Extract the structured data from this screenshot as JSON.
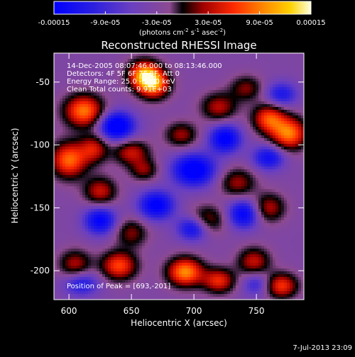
{
  "colorbar": {
    "tick_labels": [
      "-0.00015",
      "-9.0e-05",
      "-3.0e-05",
      "3.0e-05",
      "9.0e-05",
      "0.00015"
    ],
    "min": -0.00015,
    "max": 0.00015,
    "units_prefix": "(photons cm",
    "units_exp1": "-2",
    "units_mid": " s",
    "units_exp2": "-1",
    "units_mid2": " asec",
    "units_exp3": "-2",
    "units_suffix": ")"
  },
  "annotations": {
    "line1": "14-Dec-2005 08:07:46.000 to 08:13:46.000",
    "line2": "Detectors: 4F 5F 6F 7F 8F, Att 0",
    "line3": "Energy Range: 25.0 - 50.0 keV",
    "line4": "Clean     Total counts: 9.91E+03",
    "peak": "Position of Peak = [693,-201]"
  },
  "footer": {
    "date": "7-Jul-2013 23:09"
  },
  "chart_data": {
    "type": "heatmap",
    "title": "Reconstructed RHESSI Image",
    "xlabel": "Heliocentric X (arcsec)",
    "ylabel": "Heliocentric Y (arcsec)",
    "x_ticks": [
      600,
      650,
      700,
      750
    ],
    "y_ticks": [
      -50,
      -100,
      -150,
      -200
    ],
    "xlim": [
      588,
      788
    ],
    "ylim": [
      -223,
      -27
    ],
    "colormap": [
      "#0000ff",
      "#3b2bd6",
      "#7a46b0",
      "#9a4d8a",
      "#000000",
      "#a00000",
      "#ff2a00",
      "#ff8c00",
      "#ffd200",
      "#ffffe0"
    ],
    "peak_position": [
      693,
      -201
    ],
    "bright_regions": [
      {
        "x": 612,
        "y": -73,
        "level": 0.95,
        "sx": 11,
        "sy": 9
      },
      {
        "x": 600,
        "y": -112,
        "level": 0.9,
        "sx": 10,
        "sy": 10
      },
      {
        "x": 620,
        "y": -103,
        "level": 0.6,
        "sx": 8,
        "sy": 8
      },
      {
        "x": 625,
        "y": -137,
        "level": 0.6,
        "sx": 9,
        "sy": 8
      },
      {
        "x": 660,
        "y": -44,
        "level": 0.95,
        "sx": 9,
        "sy": 8
      },
      {
        "x": 668,
        "y": -52,
        "level": 0.9,
        "sx": 9,
        "sy": 8
      },
      {
        "x": 650,
        "y": -106,
        "level": 0.6,
        "sx": 10,
        "sy": 7
      },
      {
        "x": 660,
        "y": -120,
        "level": 0.45,
        "sx": 8,
        "sy": 6
      },
      {
        "x": 690,
        "y": -92,
        "level": 0.5,
        "sx": 9,
        "sy": 7
      },
      {
        "x": 720,
        "y": -70,
        "level": 0.55,
        "sx": 10,
        "sy": 8
      },
      {
        "x": 742,
        "y": -55,
        "level": 0.45,
        "sx": 9,
        "sy": 7
      },
      {
        "x": 776,
        "y": -91,
        "level": 0.95,
        "sx": 10,
        "sy": 9
      },
      {
        "x": 760,
        "y": -79,
        "level": 0.8,
        "sx": 9,
        "sy": 8
      },
      {
        "x": 735,
        "y": -130,
        "level": 0.5,
        "sx": 10,
        "sy": 8
      },
      {
        "x": 760,
        "y": -150,
        "level": 0.55,
        "sx": 9,
        "sy": 8
      },
      {
        "x": 710,
        "y": -160,
        "level": 0.55,
        "sx": 10,
        "sy": 8
      },
      {
        "x": 650,
        "y": -170,
        "level": 0.45,
        "sx": 9,
        "sy": 8
      },
      {
        "x": 640,
        "y": -196,
        "level": 0.8,
        "sx": 10,
        "sy": 8
      },
      {
        "x": 693,
        "y": -201,
        "level": 1.0,
        "sx": 10,
        "sy": 8
      },
      {
        "x": 720,
        "y": -208,
        "level": 0.7,
        "sx": 9,
        "sy": 7
      },
      {
        "x": 748,
        "y": -193,
        "level": 0.6,
        "sx": 9,
        "sy": 8
      },
      {
        "x": 770,
        "y": -212,
        "level": 0.75,
        "sx": 9,
        "sy": 7
      },
      {
        "x": 605,
        "y": -195,
        "level": 0.55,
        "sx": 9,
        "sy": 8
      }
    ],
    "dark_regions": [
      {
        "x": 638,
        "y": -85,
        "level": -0.9,
        "sx": 10,
        "sy": 8
      },
      {
        "x": 625,
        "y": -160,
        "level": -0.7,
        "sx": 9,
        "sy": 8
      },
      {
        "x": 700,
        "y": -120,
        "level": -0.85,
        "sx": 12,
        "sy": 9
      },
      {
        "x": 670,
        "y": -148,
        "level": -0.75,
        "sx": 10,
        "sy": 8
      },
      {
        "x": 700,
        "y": -166,
        "level": -0.7,
        "sx": 9,
        "sy": 7
      },
      {
        "x": 740,
        "y": -155,
        "level": -0.7,
        "sx": 9,
        "sy": 8
      },
      {
        "x": 725,
        "y": -95,
        "level": -0.75,
        "sx": 9,
        "sy": 8
      },
      {
        "x": 760,
        "y": -110,
        "level": -0.6,
        "sx": 9,
        "sy": 7
      },
      {
        "x": 770,
        "y": -60,
        "level": -0.5,
        "sx": 9,
        "sy": 7
      },
      {
        "x": 610,
        "y": -210,
        "level": -0.5,
        "sx": 10,
        "sy": 7
      },
      {
        "x": 750,
        "y": -210,
        "level": -0.4,
        "sx": 8,
        "sy": 7
      }
    ]
  }
}
